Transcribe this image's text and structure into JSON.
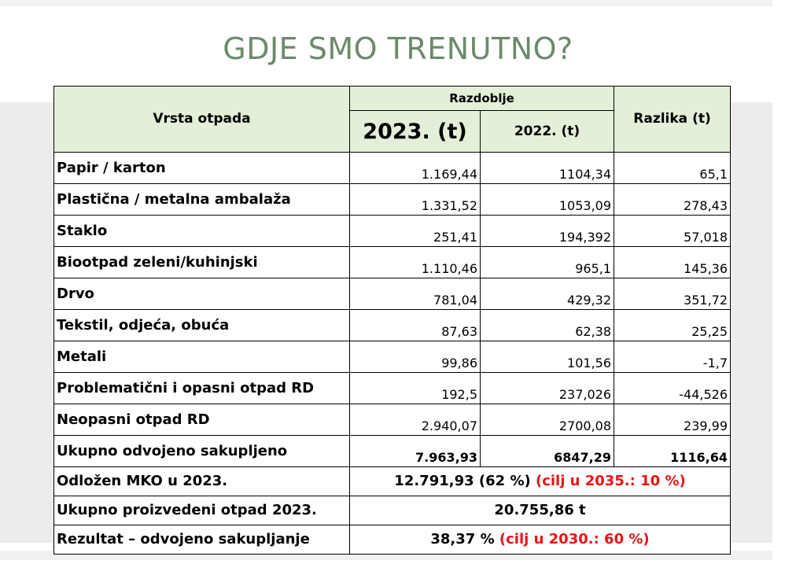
{
  "slide": {
    "title": "GDJE SMO TRENUTNO?"
  },
  "table": {
    "headers": {
      "vrsta": "Vrsta otpada",
      "razdoblje": "Razdoblje",
      "y2023": "2023. (t)",
      "y2022": "2022. (t)",
      "razlika": "Razlika (t)"
    },
    "rows": [
      {
        "label": "Papir / karton",
        "v2023": "1.169,44",
        "v2022": "1104,34",
        "diff": "65,1"
      },
      {
        "label": "Plastična / metalna ambalaža",
        "v2023": "1.331,52",
        "v2022": "1053,09",
        "diff": "278,43"
      },
      {
        "label": "Staklo",
        "v2023": "251,41",
        "v2022": "194,392",
        "diff": "57,018"
      },
      {
        "label": "Biootpad zeleni/kuhinjski",
        "v2023": "1.110,46",
        "v2022": "965,1",
        "diff": "145,36"
      },
      {
        "label": "Drvo",
        "v2023": "781,04",
        "v2022": "429,32",
        "diff": "351,72"
      },
      {
        "label": "Tekstil, odjeća, obuća",
        "v2023": "87,63",
        "v2022": "62,38",
        "diff": "25,25"
      },
      {
        "label": "Metali",
        "v2023": "99,86",
        "v2022": "101,56",
        "diff": "-1,7"
      },
      {
        "label": "Problematični i opasni otpad RD",
        "v2023": "192,5",
        "v2022": "237,026",
        "diff": "-44,526"
      },
      {
        "label": "Neopasni otpad RD",
        "v2023": "2.940,07",
        "v2022": "2700,08",
        "diff": "239,99"
      }
    ],
    "total": {
      "label": "Ukupno odvojeno sakupljeno",
      "v2023": "7.963,93",
      "v2022": "6847,29",
      "diff": "1116,64"
    },
    "summary": [
      {
        "label": "Odložen MKO u 2023.",
        "value": "12.791,93 (62 %)",
        "note": " (cilj u 2035.: 10 %)"
      },
      {
        "label": "Ukupno proizvedeni otpad 2023.",
        "value": "20.755,86 t",
        "note": ""
      },
      {
        "label": "Rezultat – odvojeno sakupljanje",
        "value": "38,37 %",
        "note": " (cilj u 2030.: 60 %)"
      }
    ],
    "colors": {
      "header_bg": "#e3efd9",
      "note_red": "#e81416",
      "title_green": "#6d8a6c"
    }
  }
}
